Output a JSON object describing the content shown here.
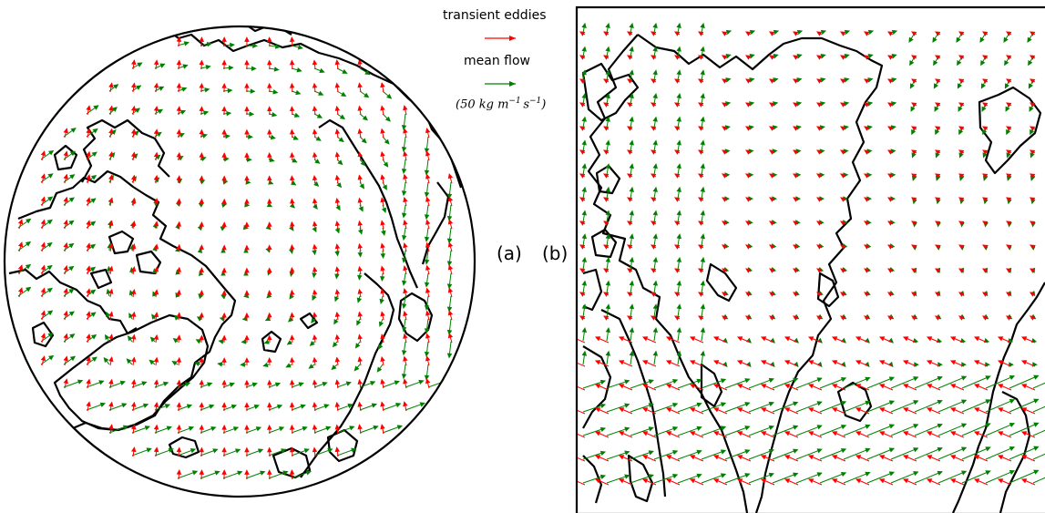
{
  "legend": {
    "transient_label": "transient eddies",
    "mean_label": "mean flow",
    "units_prefix": "(50 ",
    "units_kg": "kg m",
    "units_exp1": "−1",
    "units_s": "s",
    "units_exp2": "−1",
    "units_suffix": ")"
  },
  "panels": {
    "a_label": "(a)",
    "b_label": "(b)"
  },
  "colors": {
    "transient": "#ff0000",
    "mean": "#008000",
    "coast": "#000000"
  }
}
